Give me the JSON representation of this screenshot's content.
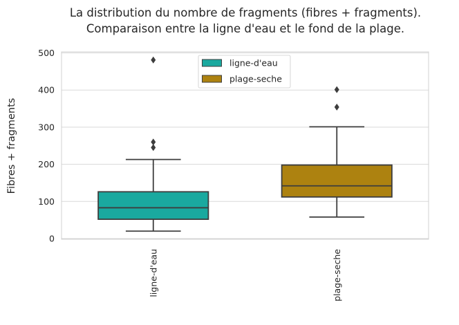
{
  "chart_data": {
    "type": "box",
    "title": [
      "La distribution du nombre de fragments (fibres + fragments).",
      "Comparaison entre la ligne d'eau et le fond de la plage."
    ],
    "xlabel": "",
    "ylabel": "Fibres + fragments",
    "ylim": [
      -5,
      505
    ],
    "yticks": [
      0,
      100,
      200,
      300,
      400,
      500
    ],
    "grid": "horizontal",
    "legend_position": "top-center",
    "categories": [
      "ligne-d'eau",
      "plage-seche"
    ],
    "series": [
      {
        "name": "ligne-d'eau",
        "color": "#1aa99f",
        "box": {
          "whisker_low": 20,
          "q1": 52,
          "median": 83,
          "q3": 126,
          "whisker_high": 213
        },
        "outliers": [
          245,
          260,
          481
        ]
      },
      {
        "name": "plage-seche",
        "color": "#ad8210",
        "box": {
          "whisker_low": 58,
          "q1": 112,
          "median": 142,
          "q3": 198,
          "whisker_high": 301
        },
        "outliers": [
          354,
          401
        ]
      }
    ]
  }
}
